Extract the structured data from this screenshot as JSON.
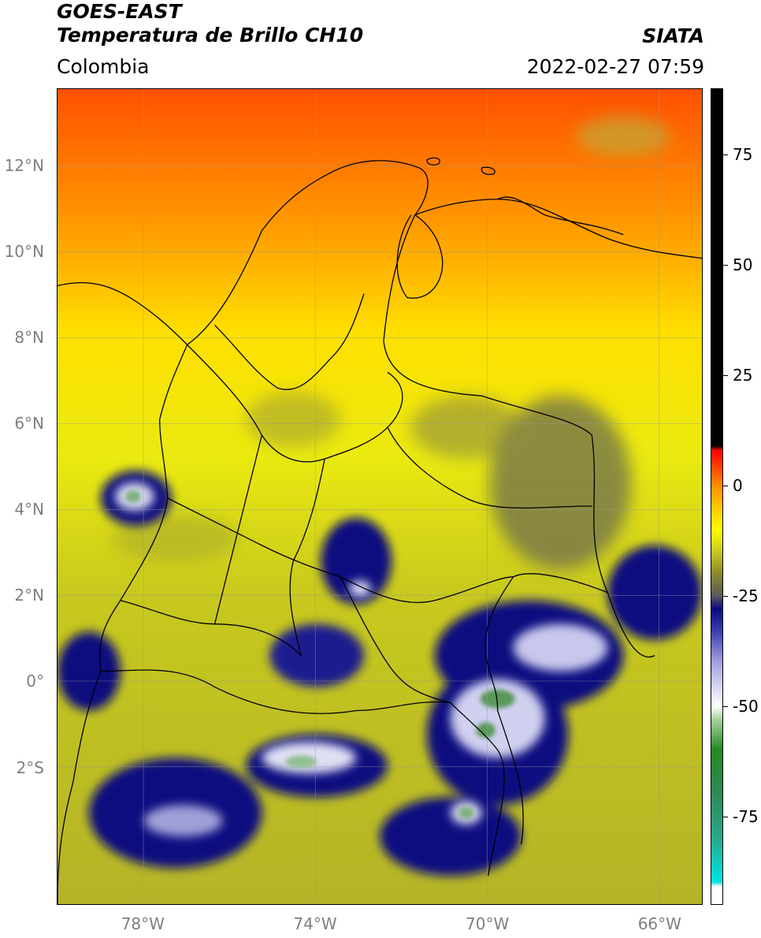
{
  "header": {
    "satellite": "GOES-EAST",
    "product": "Temperatura de Brillo CH10",
    "region": "Colombia",
    "organization": "SIATA",
    "timestamp": "2022-02-27 07:59"
  },
  "map": {
    "lat_range": [
      -5.2,
      13.8
    ],
    "lon_range": [
      -80,
      -65
    ],
    "lat_ticks": [
      {
        "value": 12,
        "label": "12°N"
      },
      {
        "value": 10,
        "label": "10°N"
      },
      {
        "value": 8,
        "label": "8°N"
      },
      {
        "value": 6,
        "label": "6°N"
      },
      {
        "value": 4,
        "label": "4°N"
      },
      {
        "value": 2,
        "label": "2°N"
      },
      {
        "value": 0,
        "label": "0°"
      },
      {
        "value": -2,
        "label": "2°S"
      }
    ],
    "lon_ticks": [
      {
        "value": -78,
        "label": "78°W"
      },
      {
        "value": -74,
        "label": "74°W"
      },
      {
        "value": -70,
        "label": "70°W"
      },
      {
        "value": -66,
        "label": "66°W"
      }
    ],
    "grid": true
  },
  "colorbar": {
    "range": [
      -95,
      90
    ],
    "ticks": [
      {
        "value": 75,
        "label": "75"
      },
      {
        "value": 50,
        "label": "50"
      },
      {
        "value": 25,
        "label": "25"
      },
      {
        "value": 0,
        "label": "0"
      },
      {
        "value": -25,
        "label": "-25"
      },
      {
        "value": -50,
        "label": "-50"
      },
      {
        "value": -75,
        "label": "-75"
      }
    ],
    "stops": [
      {
        "value": -95,
        "color": "#ffffff"
      },
      {
        "value": -91,
        "color": "#ffffff"
      },
      {
        "value": -90,
        "color": "#00e5e5"
      },
      {
        "value": -80,
        "color": "#26a98a"
      },
      {
        "value": -70,
        "color": "#2e8b57"
      },
      {
        "value": -60,
        "color": "#228b22"
      },
      {
        "value": -53,
        "color": "#a9d3a0"
      },
      {
        "value": -50,
        "color": "#ffffff"
      },
      {
        "value": -40,
        "color": "#a0a0e0"
      },
      {
        "value": -33,
        "color": "#3c3cb0"
      },
      {
        "value": -28,
        "color": "#0b0b80"
      },
      {
        "value": -25,
        "color": "#5a5a5a"
      },
      {
        "value": -20,
        "color": "#8a8a2a"
      },
      {
        "value": -15,
        "color": "#c8c81e"
      },
      {
        "value": -10,
        "color": "#ffff00"
      },
      {
        "value": -5,
        "color": "#ffc800"
      },
      {
        "value": 0,
        "color": "#ff8c00"
      },
      {
        "value": 8,
        "color": "#ff0000"
      },
      {
        "value": 9,
        "color": "#000000"
      },
      {
        "value": 90,
        "color": "#000000"
      }
    ]
  }
}
